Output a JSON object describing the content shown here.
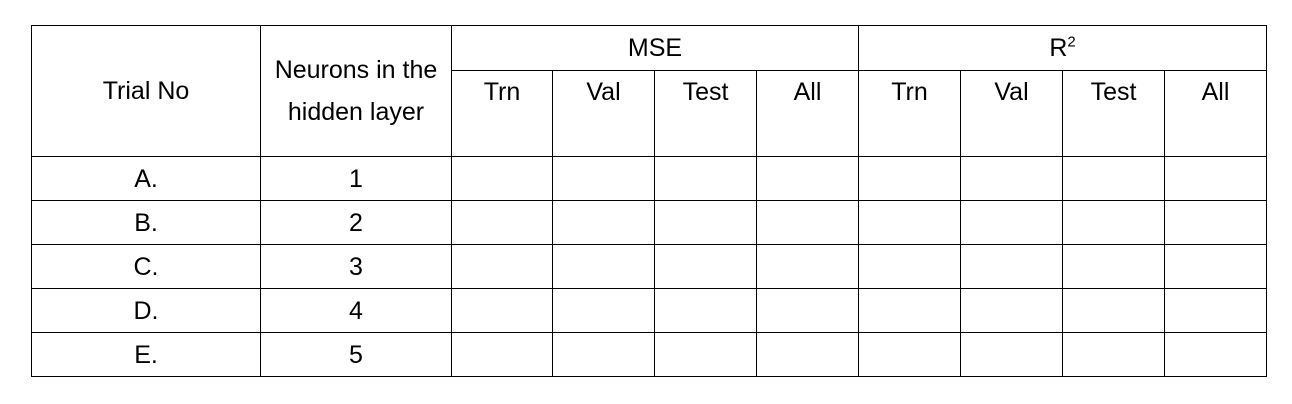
{
  "table": {
    "headers": {
      "trial": "Trial No",
      "neurons": "Neurons in the hidden layer",
      "mse": "MSE",
      "r2_base": "R",
      "r2_sup": "2"
    },
    "subheaders": {
      "mse": [
        "Trn",
        "Val",
        "Test",
        "All"
      ],
      "r2": [
        "Trn",
        "Val",
        "Test",
        "All"
      ]
    },
    "rows": [
      {
        "trial": "A.",
        "neurons": "1"
      },
      {
        "trial": "B.",
        "neurons": "2"
      },
      {
        "trial": "C.",
        "neurons": "3"
      },
      {
        "trial": "D.",
        "neurons": "4"
      },
      {
        "trial": "E.",
        "neurons": "5"
      }
    ]
  }
}
